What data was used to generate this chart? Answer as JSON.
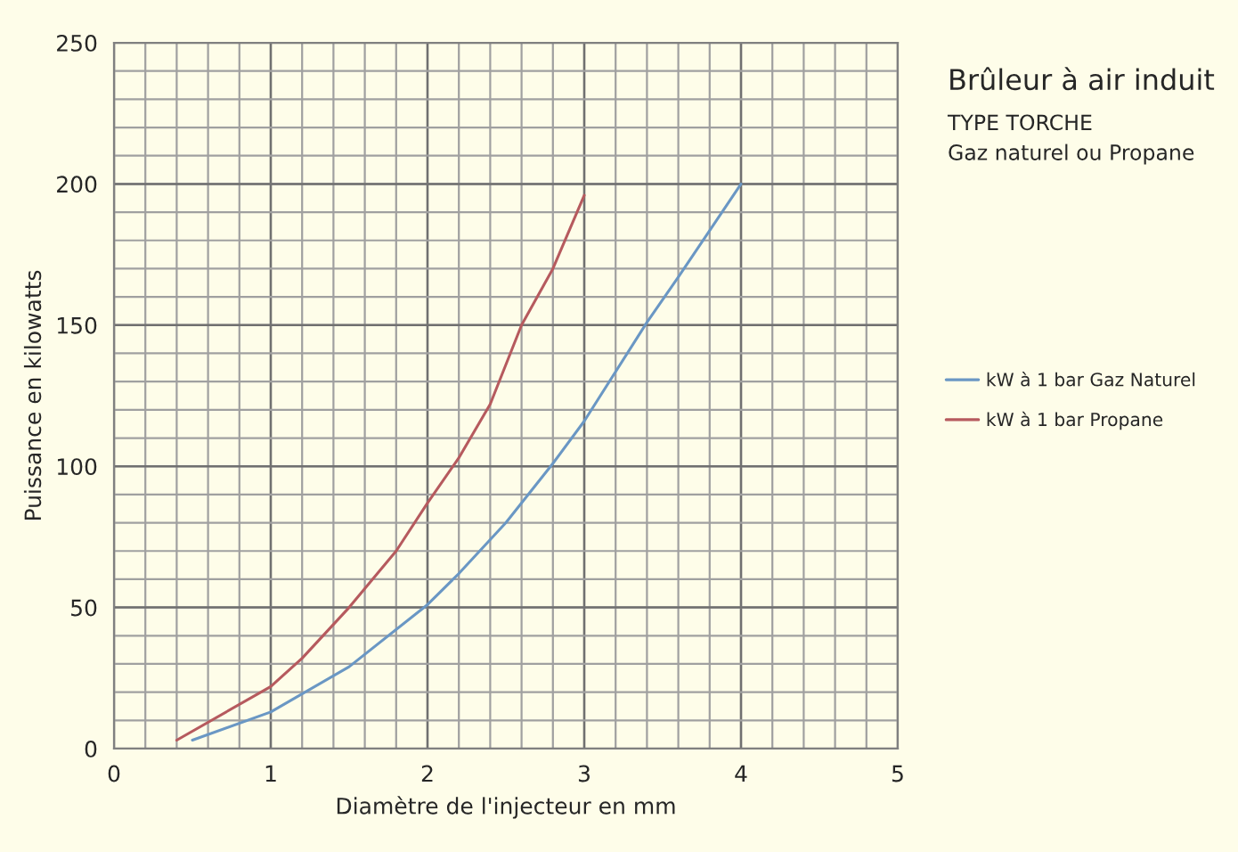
{
  "chart_data": {
    "type": "line",
    "title": "Brûleur à air induit",
    "subtitle": "TYPE TORCHE\nGaz naturel ou Propane",
    "xlabel": "Diamètre de l'injecteur en mm",
    "ylabel": "Puissance en kilowatts",
    "xlim": [
      0,
      5
    ],
    "xticks": [
      0,
      1,
      2,
      3,
      4,
      5
    ],
    "ylim": [
      0,
      250
    ],
    "yticks": [
      0,
      50,
      100,
      150,
      200,
      250
    ],
    "grid": true,
    "legend": "right",
    "marker": "none",
    "line_style": "solid",
    "series": [
      {
        "name": "kW à 1 bar Gaz Naturel",
        "color": "#6a97c4",
        "x": [
          0.5,
          1,
          1.5,
          2,
          2.2,
          2.5,
          2.8,
          3,
          3.4,
          3.6,
          4
        ],
        "values": [
          3,
          13,
          29,
          51,
          62,
          80,
          101,
          116,
          151,
          167,
          200
        ]
      },
      {
        "name": "kW à 1 bar Propane",
        "color": "#b65a5e",
        "x": [
          0.4,
          1,
          1.2,
          1.5,
          1.8,
          2,
          2.2,
          2.4,
          2.6,
          2.8,
          3
        ],
        "values": [
          3,
          22,
          32,
          50,
          70,
          87,
          103,
          122,
          150,
          170,
          196
        ]
      }
    ]
  }
}
